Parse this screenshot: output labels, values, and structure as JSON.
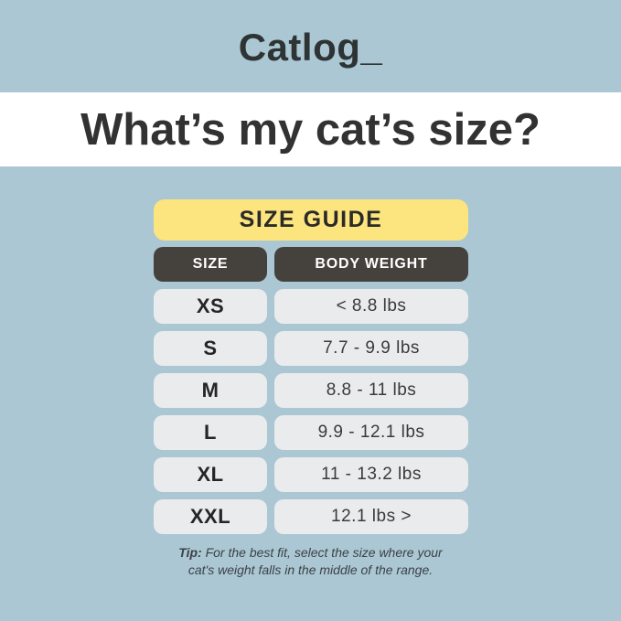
{
  "logo": "Catlog_",
  "heading": "What’s my cat’s size?",
  "table": {
    "banner": "SIZE GUIDE",
    "columns": [
      "SIZE",
      "BODY WEIGHT"
    ],
    "rows": [
      {
        "size": "XS",
        "weight": "< 8.8 lbs"
      },
      {
        "size": "S",
        "weight": "7.7 - 9.9 lbs"
      },
      {
        "size": "M",
        "weight": "8.8 - 11 lbs"
      },
      {
        "size": "L",
        "weight": "9.9 - 12.1 lbs"
      },
      {
        "size": "XL",
        "weight": "11 - 13.2 lbs"
      },
      {
        "size": "XXL",
        "weight": "12.1 lbs >"
      }
    ]
  },
  "tip": {
    "label": "Tip:",
    "line1": "For the best fit, select the size where your",
    "line2": "cat's weight falls in the middle of the range."
  },
  "colors": {
    "background": "#abc7d3",
    "heading_band": "#ffffff",
    "banner_yellow": "#fce47f",
    "header_dark": "#45423e",
    "row_gray": "#eaebec",
    "text_dark": "#323232"
  }
}
